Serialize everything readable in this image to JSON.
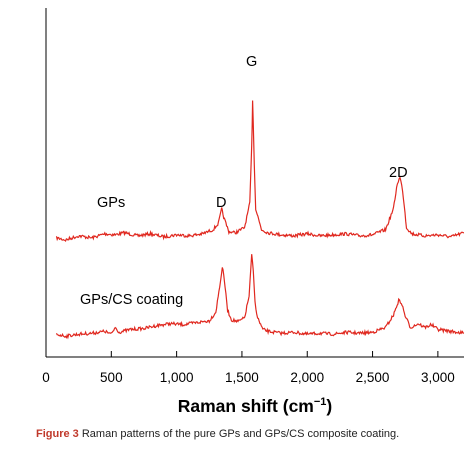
{
  "chart_data": {
    "type": "line",
    "xlabel_main": "Raman shift (cm",
    "xlabel_sup": "−1",
    "xlabel_close": ")",
    "xlim": [
      0,
      3200
    ],
    "x_ticks": [
      0,
      500,
      1000,
      1500,
      2000,
      2500,
      3000
    ],
    "x_tick_labels": [
      "0",
      "500",
      "1,000",
      "1,500",
      "2,000",
      "2,500",
      "3,000"
    ],
    "y_axis_ticks_shown": false,
    "grid": false,
    "line_color": "#e0281f",
    "series": [
      {
        "name": "GPs",
        "points": [
          [
            80,
            0.02
          ],
          [
            150,
            0.0
          ],
          [
            250,
            0.04
          ],
          [
            350,
            0.02
          ],
          [
            450,
            0.06
          ],
          [
            530,
            0.05
          ],
          [
            600,
            0.07
          ],
          [
            700,
            0.04
          ],
          [
            800,
            0.06
          ],
          [
            900,
            0.03
          ],
          [
            1000,
            0.05
          ],
          [
            1100,
            0.04
          ],
          [
            1200,
            0.06
          ],
          [
            1280,
            0.1
          ],
          [
            1320,
            0.16
          ],
          [
            1345,
            0.3
          ],
          [
            1360,
            0.22
          ],
          [
            1400,
            0.08
          ],
          [
            1450,
            0.07
          ],
          [
            1520,
            0.12
          ],
          [
            1560,
            0.35
          ],
          [
            1575,
            0.9
          ],
          [
            1582,
            1.35
          ],
          [
            1590,
            0.95
          ],
          [
            1605,
            0.3
          ],
          [
            1650,
            0.1
          ],
          [
            1700,
            0.07
          ],
          [
            1800,
            0.05
          ],
          [
            1900,
            0.04
          ],
          [
            2000,
            0.06
          ],
          [
            2100,
            0.04
          ],
          [
            2200,
            0.05
          ],
          [
            2300,
            0.06
          ],
          [
            2400,
            0.04
          ],
          [
            2500,
            0.05
          ],
          [
            2600,
            0.1
          ],
          [
            2660,
            0.3
          ],
          [
            2690,
            0.55
          ],
          [
            2710,
            0.6
          ],
          [
            2730,
            0.48
          ],
          [
            2760,
            0.12
          ],
          [
            2800,
            0.06
          ],
          [
            2900,
            0.04
          ],
          [
            3000,
            0.05
          ],
          [
            3100,
            0.03
          ],
          [
            3200,
            0.07
          ]
        ]
      },
      {
        "name": "GPs/CS coating",
        "points": [
          [
            80,
            0.05
          ],
          [
            150,
            0.03
          ],
          [
            250,
            0.05
          ],
          [
            350,
            0.06
          ],
          [
            450,
            0.08
          ],
          [
            500,
            0.05
          ],
          [
            530,
            0.12
          ],
          [
            560,
            0.07
          ],
          [
            650,
            0.1
          ],
          [
            750,
            0.11
          ],
          [
            850,
            0.14
          ],
          [
            950,
            0.16
          ],
          [
            1050,
            0.15
          ],
          [
            1150,
            0.17
          ],
          [
            1250,
            0.19
          ],
          [
            1300,
            0.28
          ],
          [
            1330,
            0.55
          ],
          [
            1350,
            0.75
          ],
          [
            1365,
            0.62
          ],
          [
            1390,
            0.3
          ],
          [
            1420,
            0.2
          ],
          [
            1470,
            0.18
          ],
          [
            1520,
            0.22
          ],
          [
            1555,
            0.45
          ],
          [
            1575,
            0.88
          ],
          [
            1587,
            0.7
          ],
          [
            1600,
            0.38
          ],
          [
            1620,
            0.22
          ],
          [
            1660,
            0.1
          ],
          [
            1700,
            0.08
          ],
          [
            1800,
            0.06
          ],
          [
            1900,
            0.07
          ],
          [
            2000,
            0.05
          ],
          [
            2100,
            0.06
          ],
          [
            2200,
            0.05
          ],
          [
            2300,
            0.07
          ],
          [
            2400,
            0.06
          ],
          [
            2500,
            0.07
          ],
          [
            2600,
            0.12
          ],
          [
            2660,
            0.25
          ],
          [
            2700,
            0.4
          ],
          [
            2720,
            0.38
          ],
          [
            2750,
            0.24
          ],
          [
            2790,
            0.12
          ],
          [
            2850,
            0.16
          ],
          [
            2900,
            0.12
          ],
          [
            2950,
            0.15
          ],
          [
            3000,
            0.1
          ],
          [
            3100,
            0.08
          ],
          [
            3200,
            0.06
          ]
        ]
      }
    ],
    "annotations": {
      "gps_label": "GPs",
      "gpscs_label": "GPs/CS coating",
      "d_peak": "D",
      "g_peak": "G",
      "peak_2d": "2D"
    }
  },
  "caption": {
    "prefix": "Figure 3",
    "text": " Raman patterns of the pure GPs and GPs/CS composite coating."
  }
}
